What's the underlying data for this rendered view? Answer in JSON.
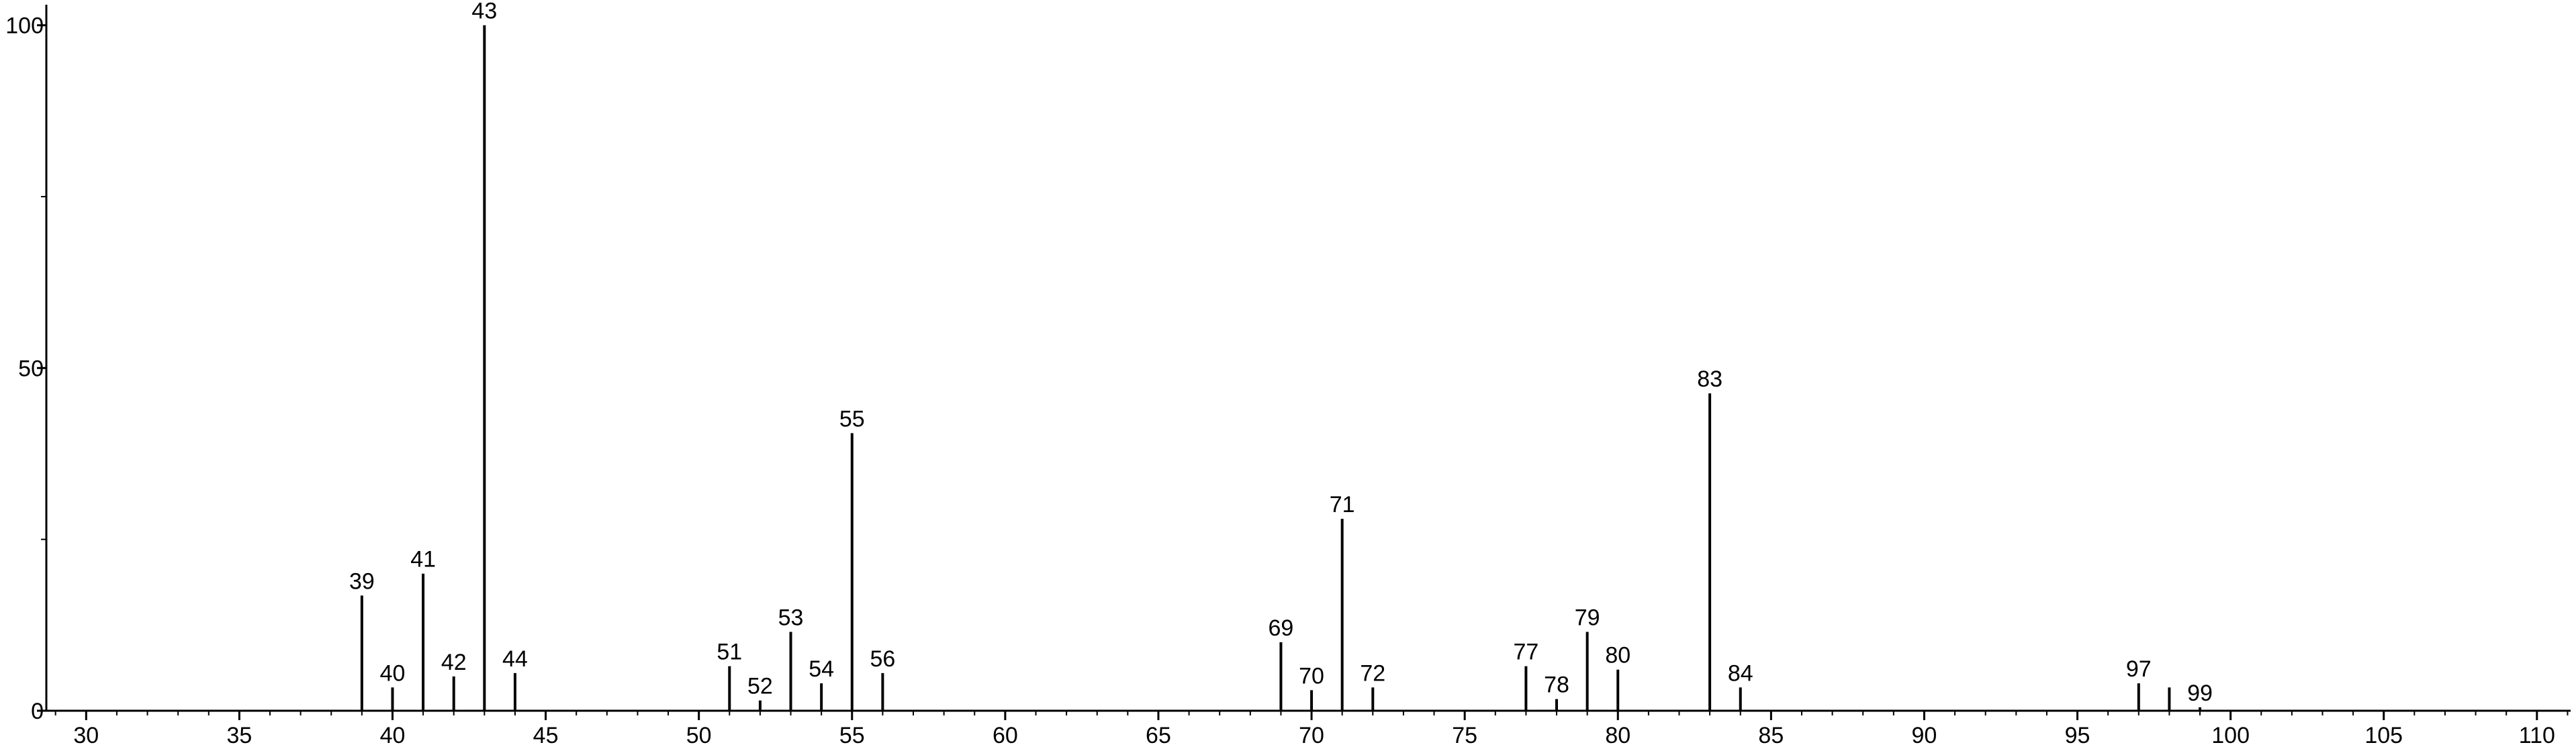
{
  "chart_data": {
    "type": "stem",
    "x": [
      39,
      40,
      41,
      42,
      43,
      44,
      51,
      52,
      53,
      54,
      55,
      56,
      69,
      70,
      71,
      72,
      77,
      78,
      79,
      80,
      83,
      84,
      97,
      98,
      99
    ],
    "values": [
      16.8,
      3.4,
      20,
      5,
      100,
      5.5,
      6.5,
      1.5,
      11.5,
      4,
      40.5,
      5.5,
      10,
      3,
      28,
      3.4,
      6.5,
      1.7,
      11.5,
      6,
      46.3,
      3.4,
      4,
      3.4,
      0.5
    ],
    "peak_labels": [
      39,
      40,
      41,
      42,
      43,
      44,
      51,
      52,
      53,
      54,
      55,
      56,
      69,
      70,
      71,
      72,
      77,
      78,
      79,
      80,
      83,
      84,
      97,
      null,
      99
    ],
    "color": "#000000",
    "xlim": [
      28.7,
      111.1
    ],
    "xticks": [
      30,
      35,
      40,
      45,
      50,
      55,
      60,
      65,
      70,
      75,
      80,
      85,
      90,
      95,
      100,
      105,
      110
    ],
    "ylim": [
      0,
      103
    ],
    "yticks": [
      0,
      50,
      100
    ]
  }
}
